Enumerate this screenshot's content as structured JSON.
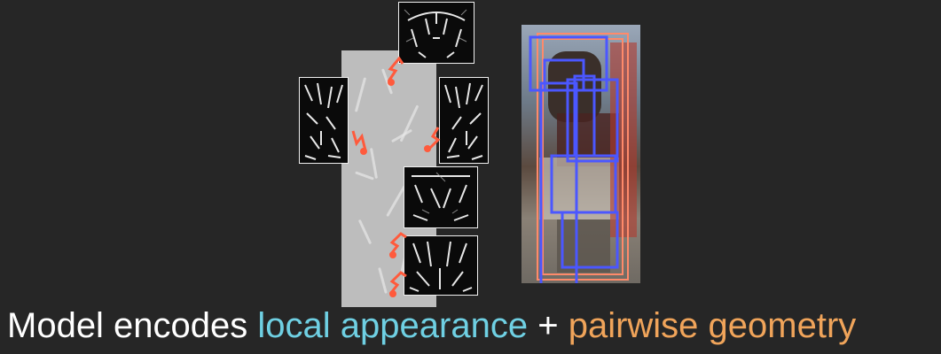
{
  "caption": {
    "prefix": "Model encodes",
    "local": "local appearance",
    "plus": "+",
    "pairwise": "pairwise geometry"
  },
  "colors": {
    "background": "#262626",
    "text": "#ffffff",
    "local_appearance": "#6fd0e3",
    "pairwise_geometry": "#f0a45a",
    "spring": "#ff5a3c",
    "root_box": "#ff8a6a",
    "part_box": "#4b57ff"
  },
  "icons": {
    "spring": "spring-icon",
    "hog_part": "hog-filter-icon"
  }
}
